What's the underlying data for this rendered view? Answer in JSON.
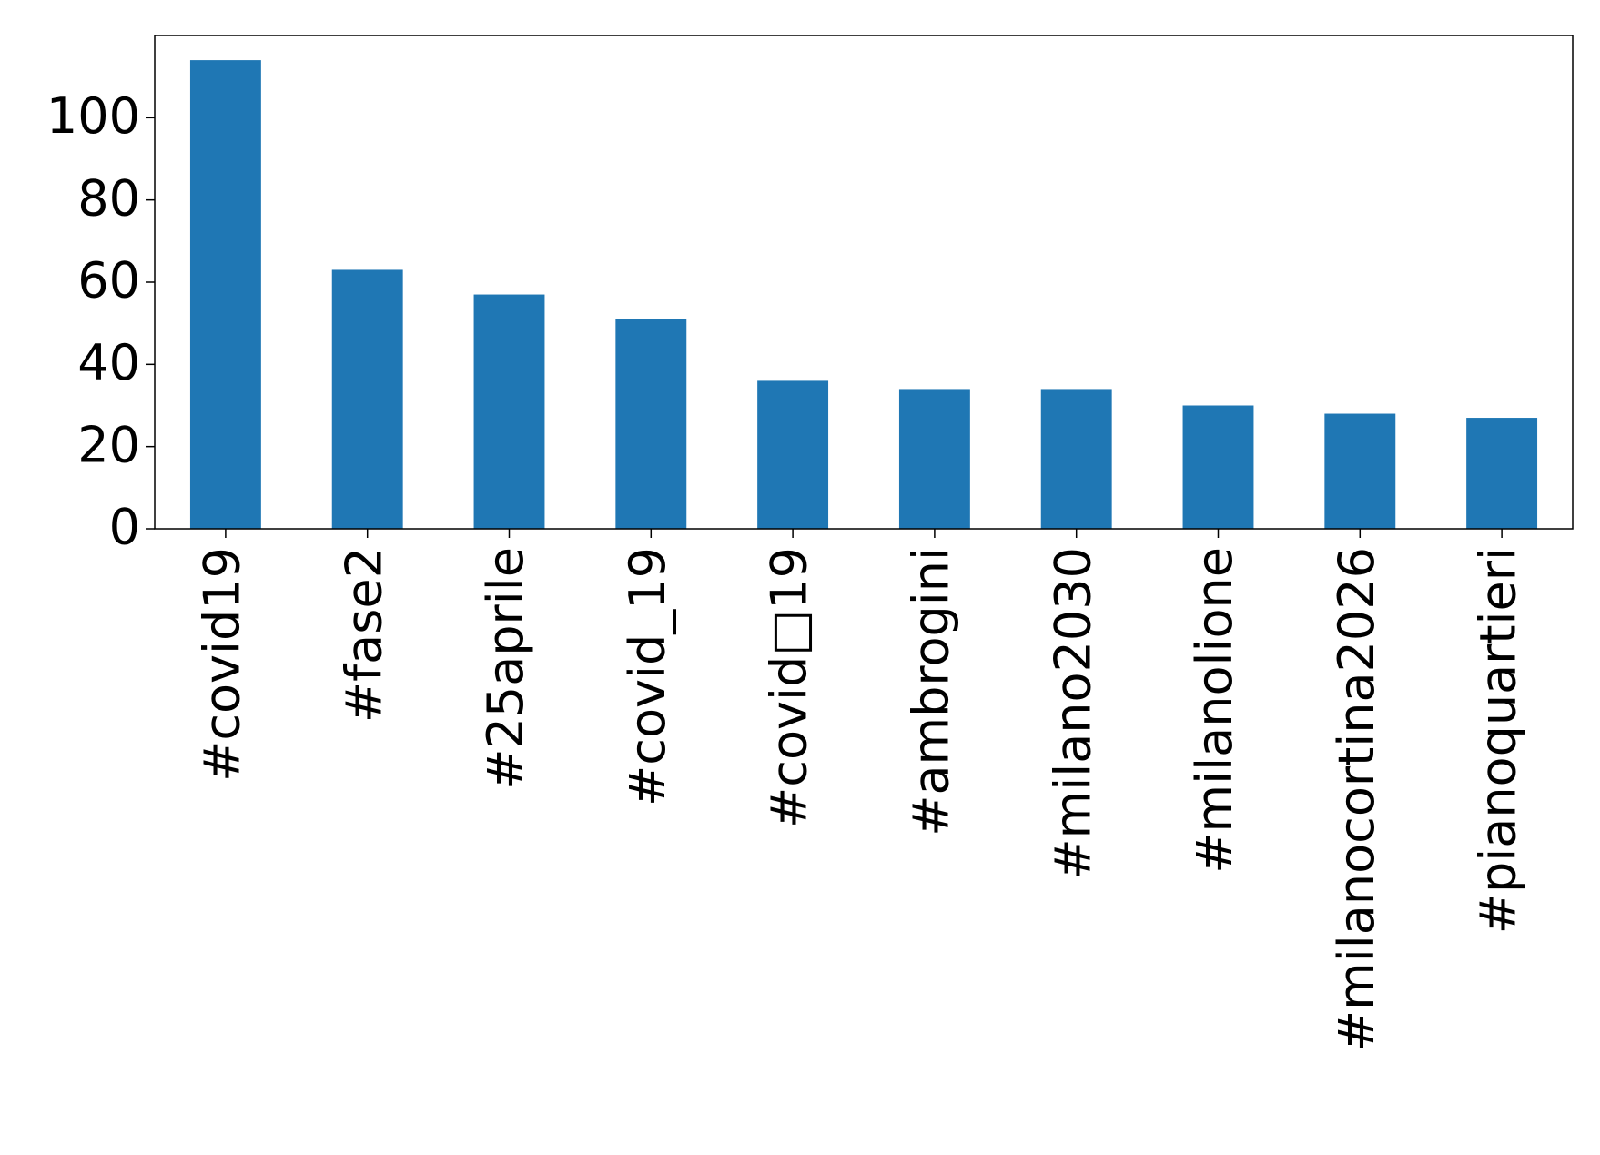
{
  "chart_data": {
    "type": "bar",
    "categories": [
      "#covid19",
      "#fase2",
      "#25aprile",
      "#covid_19",
      "#covid□19",
      "#ambrogini",
      "#milano2030",
      "#milanolione",
      "#milanocortina2026",
      "#pianoquartieri"
    ],
    "values": [
      114,
      63,
      57,
      51,
      36,
      34,
      34,
      30,
      28,
      27
    ],
    "color": "#1f77b4",
    "ylim": [
      0,
      120
    ],
    "yticks": [
      0,
      20,
      40,
      60,
      80,
      100
    ],
    "grid": false
  }
}
